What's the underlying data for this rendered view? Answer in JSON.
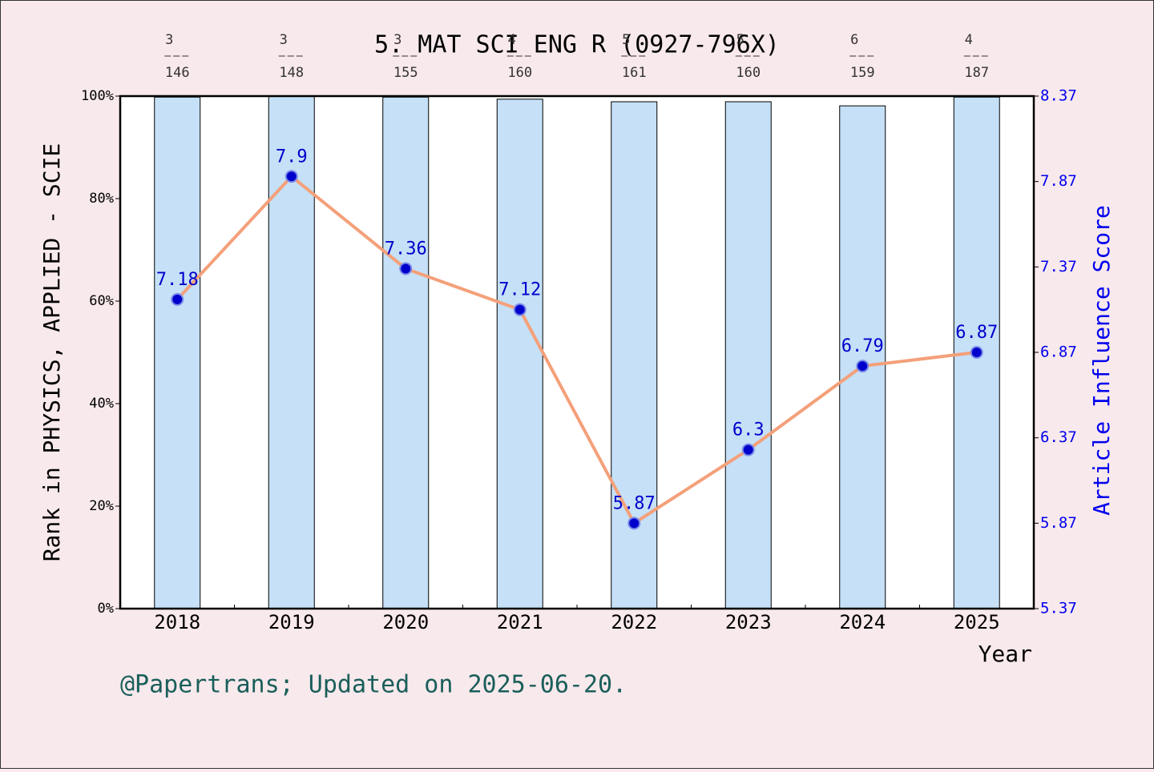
{
  "chart_data": {
    "type": "bar-line",
    "title": "5. MAT SCI ENG R (0927-796X)",
    "y_label": "Rank in PHYSICS, APPLIED - SCIE",
    "y2_label": "Article Influence Score",
    "x_label": "Year",
    "footer": "@Papertrans; Updated on 2025-06-20.",
    "categories": [
      "2018",
      "2019",
      "2020",
      "2021",
      "2022",
      "2023",
      "2024",
      "2025"
    ],
    "ranks": [
      3,
      3,
      3,
      4,
      5,
      5,
      6,
      4
    ],
    "totals": [
      146,
      148,
      155,
      160,
      161,
      160,
      159,
      187
    ],
    "series": [
      {
        "name": "Rank",
        "color": "#c5e0f7",
        "values": [
          99.8,
          100,
          99.8,
          99.4,
          98.9,
          98.9,
          98.1,
          99.8
        ]
      },
      {
        "name": "Article Influence Score",
        "color": "#f4a07a",
        "axis": "y2",
        "values": [
          7.18,
          7.9,
          7.36,
          7.12,
          5.87,
          6.3,
          6.79,
          6.87
        ]
      }
    ],
    "ylim": [
      0,
      100
    ],
    "yticks": [
      {
        "value": 0,
        "label": "0%"
      },
      {
        "value": 20,
        "label": "20%"
      },
      {
        "value": 40,
        "label": "40%"
      },
      {
        "value": 60,
        "label": "60%"
      },
      {
        "value": 80,
        "label": "80%"
      },
      {
        "value": 100,
        "label": "100%"
      }
    ],
    "y2lim": [
      5.37,
      8.37
    ],
    "y2ticks": [
      5.37,
      5.87,
      6.37,
      6.87,
      7.37,
      7.87,
      8.37
    ]
  }
}
